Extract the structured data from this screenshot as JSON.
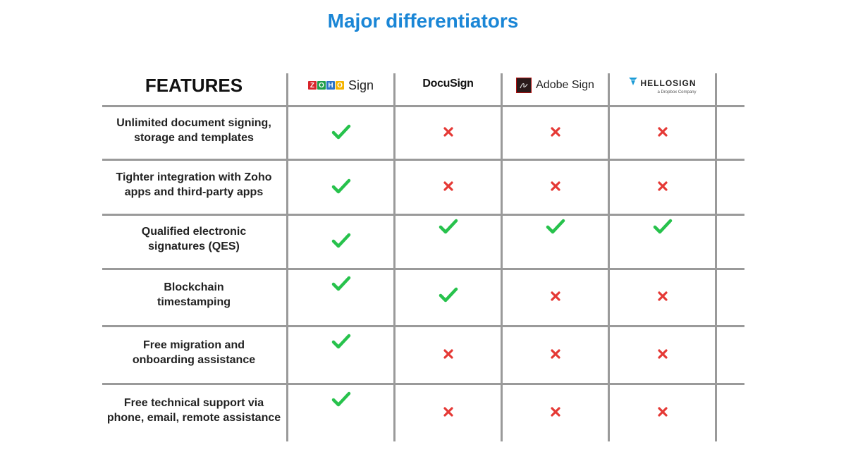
{
  "title": "Major differentiators",
  "columns_header": {
    "features": "FEATURES",
    "zoho": {
      "letters": [
        "Z",
        "O",
        "H",
        "O"
      ],
      "letter_colors": [
        "#d8252b",
        "#1f9d4a",
        "#2a73c7",
        "#f5b400"
      ],
      "label": "Sign"
    },
    "docusign": {
      "label": "DocuSign"
    },
    "adobe": {
      "label": "Adobe Sign"
    },
    "hellosign": {
      "label": "HELLOSIGN",
      "sub": "a Dropbox Company",
      "icon_color": "#1b9bd6"
    }
  },
  "colors": {
    "check": "#27c24c",
    "cross": "#e53935",
    "title": "#1a86d6",
    "grid": "#9a9a9a"
  },
  "rows": [
    {
      "feature": [
        "Unlimited document signing,",
        "storage and templates"
      ],
      "marks": [
        "check",
        "cross",
        "cross",
        "cross"
      ]
    },
    {
      "feature": [
        "Tighter integration with Zoho",
        "apps and third-party apps"
      ],
      "marks": [
        "check",
        "cross",
        "cross",
        "cross"
      ]
    },
    {
      "feature": [
        "Qualified electronic",
        "signatures (QES)"
      ],
      "marks": [
        "check",
        "check",
        "check",
        "check"
      ]
    },
    {
      "feature": [
        "Blockchain",
        "timestamping"
      ],
      "marks": [
        "check",
        "check",
        "cross",
        "cross"
      ]
    },
    {
      "feature": [
        "Free migration and",
        "onboarding assistance"
      ],
      "marks": [
        "check",
        "cross",
        "cross",
        "cross"
      ]
    },
    {
      "feature": [
        "Free technical support via",
        "phone, email, remote assistance"
      ],
      "marks": [
        "check",
        "cross",
        "cross",
        "cross"
      ]
    }
  ]
}
